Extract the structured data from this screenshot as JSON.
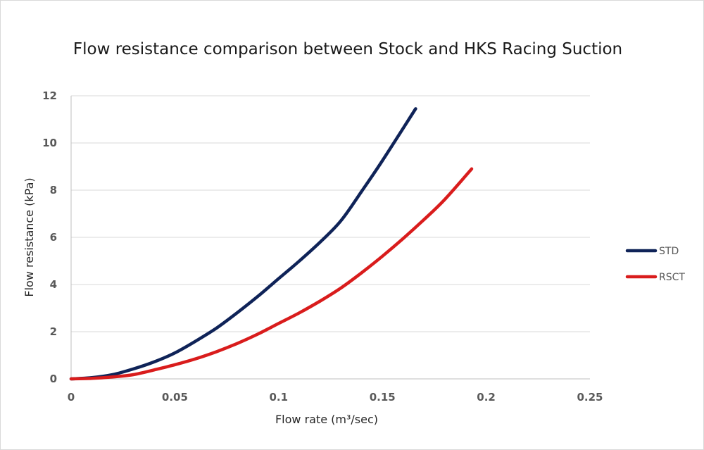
{
  "chart_data": {
    "type": "line",
    "title": "Flow resistance comparison between Stock and HKS Racing Suction",
    "xlabel": "Flow rate (m³/sec)",
    "ylabel": "Flow resistance (kPa)",
    "xlim": [
      0,
      0.25
    ],
    "ylim": [
      0,
      12
    ],
    "x_ticks": [
      "0",
      "0.05",
      "0.1",
      "0.15",
      "0.2",
      "0.25"
    ],
    "x_tick_values": [
      0,
      0.05,
      0.1,
      0.15,
      0.2,
      0.25
    ],
    "y_ticks": [
      "0",
      "2",
      "4",
      "6",
      "8",
      "10",
      "12"
    ],
    "y_tick_values": [
      0,
      2,
      4,
      6,
      8,
      10,
      12
    ],
    "grid": "horizontal",
    "legend_position": "right",
    "series": [
      {
        "name": "STD",
        "color": "#0f2358",
        "x": [
          0,
          0.01,
          0.02,
          0.03,
          0.04,
          0.05,
          0.06,
          0.07,
          0.08,
          0.09,
          0.1,
          0.11,
          0.12,
          0.13,
          0.14,
          0.15,
          0.166
        ],
        "y": [
          0,
          0.05,
          0.18,
          0.42,
          0.72,
          1.1,
          1.6,
          2.15,
          2.8,
          3.5,
          4.25,
          5.0,
          5.8,
          6.7,
          7.95,
          9.25,
          11.45
        ]
      },
      {
        "name": "RSCT",
        "color": "#d91c1c",
        "x": [
          0,
          0.01,
          0.02,
          0.03,
          0.04,
          0.05,
          0.06,
          0.07,
          0.08,
          0.09,
          0.1,
          0.11,
          0.12,
          0.13,
          0.14,
          0.15,
          0.16,
          0.17,
          0.18,
          0.193
        ],
        "y": [
          0,
          0.02,
          0.08,
          0.18,
          0.38,
          0.6,
          0.85,
          1.15,
          1.5,
          1.9,
          2.35,
          2.8,
          3.3,
          3.85,
          4.5,
          5.2,
          5.95,
          6.75,
          7.6,
          8.9
        ]
      }
    ]
  }
}
